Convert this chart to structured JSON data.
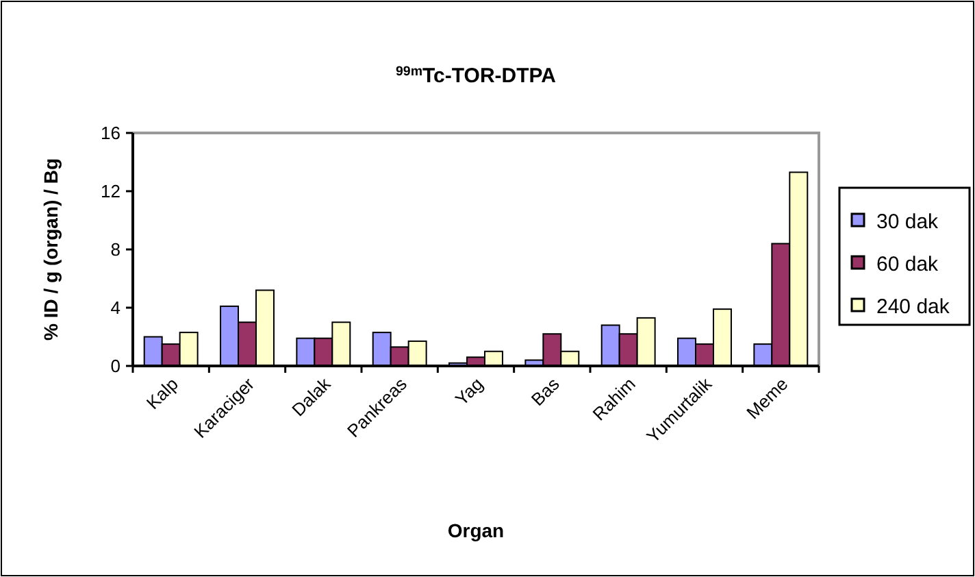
{
  "chart_data": {
    "type": "bar",
    "title": "$^{99m}$Tc-TOR-DTPA",
    "xlabel": "Organ",
    "ylabel": "% ID / g (organ) / Bg",
    "categories": [
      "Kalp",
      "Karaciger",
      "Dalak",
      "Pankreas",
      "Yag",
      "Bas",
      "Rahim",
      "Yumurtalik",
      "Meme"
    ],
    "series": [
      {
        "name": "30 dak",
        "color": "#9999ff",
        "values": [
          2.0,
          4.1,
          1.9,
          2.3,
          0.2,
          0.4,
          2.8,
          1.9,
          1.5
        ]
      },
      {
        "name": "60 dak",
        "color": "#993366",
        "values": [
          1.5,
          3.0,
          1.9,
          1.3,
          0.6,
          2.2,
          2.2,
          1.5,
          8.4
        ]
      },
      {
        "name": "240 dak",
        "color": "#ffffcc",
        "values": [
          2.3,
          5.2,
          3.0,
          1.7,
          1.0,
          1.0,
          3.3,
          3.9,
          13.3
        ]
      }
    ],
    "ylim": [
      0,
      16
    ],
    "yticks": [
      0,
      4,
      8,
      12,
      16
    ],
    "grid": false,
    "legend": "right"
  }
}
